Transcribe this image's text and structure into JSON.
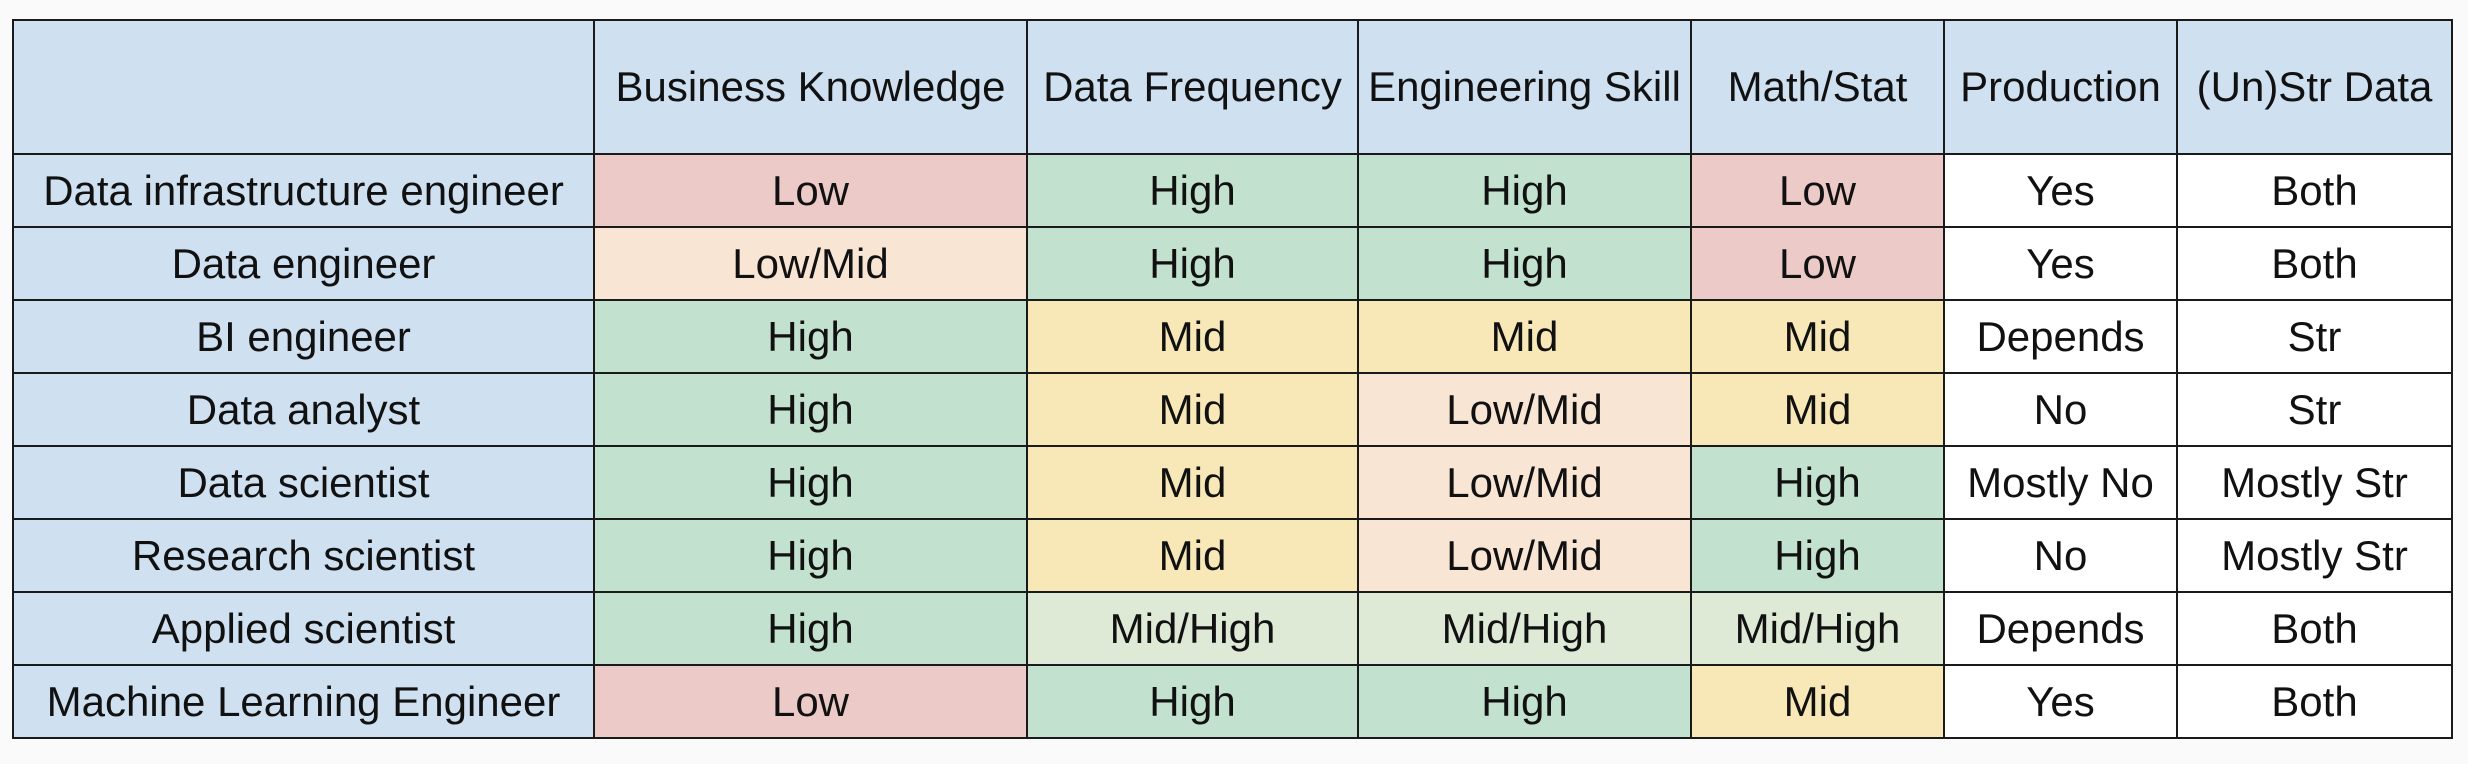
{
  "table": {
    "headers": [
      "",
      "Business Knowledge",
      "Data Frequency",
      "Engineering Skill",
      "Math/Stat",
      "Production",
      "(Un)Str Data"
    ],
    "rows": [
      {
        "role": "Data infrastructure engineer",
        "cells": [
          "Low",
          "High",
          "High",
          "Low",
          "Yes",
          "Both"
        ]
      },
      {
        "role": "Data engineer",
        "cells": [
          "Low/Mid",
          "High",
          "High",
          "Low",
          "Yes",
          "Both"
        ]
      },
      {
        "role": "BI engineer",
        "cells": [
          "High",
          "Mid",
          "Mid",
          "Mid",
          "Depends",
          "Str"
        ]
      },
      {
        "role": "Data analyst",
        "cells": [
          "High",
          "Mid",
          "Low/Mid",
          "Mid",
          "No",
          "Str"
        ]
      },
      {
        "role": "Data scientist",
        "cells": [
          "High",
          "Mid",
          "Low/Mid",
          "High",
          "Mostly No",
          "Mostly Str"
        ]
      },
      {
        "role": "Research scientist",
        "cells": [
          "High",
          "Mid",
          "Low/Mid",
          "High",
          "No",
          "Mostly Str"
        ]
      },
      {
        "role": "Applied scientist",
        "cells": [
          "High",
          "Mid/High",
          "Mid/High",
          "Mid/High",
          "Depends",
          "Both"
        ]
      },
      {
        "role": "Machine Learning Engineer",
        "cells": [
          "Low",
          "High",
          "High",
          "Mid",
          "Yes",
          "Both"
        ]
      }
    ]
  },
  "colors": {
    "header_background": "#cfe0f1",
    "low": "#eccac8",
    "low_mid": "#f9e5d4",
    "mid": "#f8e8b8",
    "mid_high": "#dee9d6",
    "high": "#c2e1ce",
    "plain": "#ffffff"
  }
}
